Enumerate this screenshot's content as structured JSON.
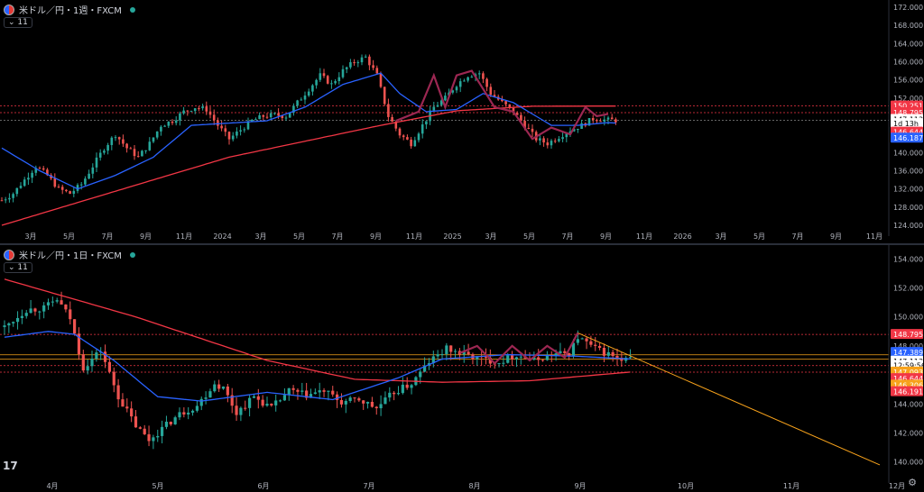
{
  "top": {
    "legend_title": "米ドル／円・1週・FXCM",
    "indicator_badge": "⌄ 11",
    "y_ticks": [
      "172.000",
      "168.000",
      "164.000",
      "160.000",
      "156.000",
      "152.000",
      "148.000",
      "144.000",
      "140.000",
      "136.000",
      "132.000",
      "128.000",
      "124.000"
    ],
    "x_ticks": [
      "3月",
      "5月",
      "7月",
      "9月",
      "11月",
      "2024",
      "3月",
      "5月",
      "7月",
      "9月",
      "11月",
      "2025",
      "3月",
      "5月",
      "7月",
      "9月",
      "11月",
      "2026",
      "3月",
      "5月",
      "7月",
      "9月",
      "11月"
    ],
    "price_labels": [
      {
        "text": "150.251",
        "color": "#f23645",
        "value": 150.251
      },
      {
        "text": "148.795",
        "color": "#f23645",
        "value": 148.795
      },
      {
        "text": "147.113",
        "color": "#ffffff",
        "value": 147.3
      },
      {
        "text": "1d 13h",
        "color": "#ffffff",
        "value": 146.4
      },
      {
        "text": "146.644",
        "color": "#f23645",
        "value": 144.5
      },
      {
        "text": "146.187",
        "color": "#2962ff",
        "value": 143.2
      }
    ]
  },
  "bottom": {
    "legend_title": "米ドル／円・1日・FXCM",
    "indicator_badge": "⌄ 11",
    "y_ticks": [
      "154.000",
      "152.000",
      "150.000",
      "148.000",
      "146.000",
      "144.000",
      "142.000",
      "140.000"
    ],
    "x_ticks": [
      "4月",
      "5月",
      "6月",
      "7月",
      "8月",
      "9月",
      "10月",
      "11月",
      "12月"
    ],
    "price_labels": [
      {
        "text": "148.795",
        "color": "#f23645",
        "value": 148.795
      },
      {
        "text": "147.389",
        "color": "#2962ff",
        "value": 147.55
      },
      {
        "text": "147.113",
        "color": "#ffffff",
        "value": 146.95
      },
      {
        "text": "12:59:56",
        "color": "#ffffff",
        "value": 146.65
      },
      {
        "text": "147.093",
        "color": "#f7a21b",
        "value": 146.2
      },
      {
        "text": "146.644",
        "color": "#f23645",
        "value": 145.75
      },
      {
        "text": "146.306",
        "color": "#f7a21b",
        "value": 145.3
      },
      {
        "text": "146.191",
        "color": "#f23645",
        "value": 144.85
      }
    ]
  },
  "tv_logo": "17",
  "gear_icon": "settings-icon",
  "colors": {
    "up": "#26a69a",
    "down": "#ef5350",
    "ma_fast": "#2962ff",
    "ma_slow": "#f23645",
    "trend": "#f7a21b",
    "bg": "#000000",
    "grid_text": "#b2b5be"
  },
  "chart_data": [
    {
      "type": "candlestick",
      "title": "米ドル／円・1週・FXCM",
      "ylim": [
        124,
        172
      ],
      "x_range": [
        "2023-01",
        "2026-12"
      ],
      "x_tick_labels": [
        "3月",
        "5月",
        "7月",
        "9月",
        "11月",
        "2024",
        "3月",
        "5月",
        "7月",
        "9月",
        "11月",
        "2025",
        "3月",
        "5月",
        "7月",
        "9月",
        "11月",
        "2026",
        "3月",
        "5月",
        "7月",
        "9月",
        "11月"
      ],
      "close_path": [
        [
          0,
          129.5
        ],
        [
          3,
          131
        ],
        [
          6,
          134
        ],
        [
          9,
          137
        ],
        [
          12,
          135
        ],
        [
          15,
          132
        ],
        [
          18,
          131
        ],
        [
          21,
          133
        ],
        [
          24,
          137
        ],
        [
          27,
          141
        ],
        [
          30,
          144
        ],
        [
          33,
          141
        ],
        [
          36,
          139
        ],
        [
          39,
          142
        ],
        [
          42,
          146
        ],
        [
          45,
          147
        ],
        [
          48,
          149
        ],
        [
          51,
          150
        ],
        [
          54,
          149.5
        ],
        [
          57,
          146
        ],
        [
          60,
          143
        ],
        [
          63,
          145
        ],
        [
          66,
          147
        ],
        [
          69,
          148
        ],
        [
          72,
          148.3
        ],
        [
          75,
          148
        ],
        [
          78,
          151
        ],
        [
          81,
          154
        ],
        [
          84,
          157
        ],
        [
          87,
          155
        ],
        [
          90,
          158
        ],
        [
          93,
          160
        ],
        [
          96,
          161
        ],
        [
          99,
          157
        ],
        [
          102,
          148
        ],
        [
          105,
          144
        ],
        [
          108,
          142
        ],
        [
          111,
          146
        ],
        [
          114,
          150
        ],
        [
          117,
          152
        ],
        [
          120,
          155
        ],
        [
          123,
          157
        ],
        [
          126,
          157.5
        ],
        [
          129,
          153
        ],
        [
          132,
          151
        ],
        [
          135,
          149
        ],
        [
          138,
          146
        ],
        [
          141,
          143
        ],
        [
          144,
          142
        ],
        [
          147,
          143.5
        ],
        [
          150,
          145
        ],
        [
          153,
          146
        ],
        [
          156,
          147.5
        ],
        [
          159,
          147.2
        ],
        [
          162,
          147.1
        ]
      ],
      "ma_fast_path": [
        [
          0,
          141
        ],
        [
          10,
          136
        ],
        [
          20,
          132
        ],
        [
          30,
          135
        ],
        [
          40,
          139
        ],
        [
          50,
          146
        ],
        [
          60,
          146.5
        ],
        [
          70,
          147
        ],
        [
          80,
          150
        ],
        [
          90,
          155
        ],
        [
          100,
          157.5
        ],
        [
          105,
          153
        ],
        [
          112,
          149
        ],
        [
          120,
          149.5
        ],
        [
          127,
          153
        ],
        [
          135,
          151
        ],
        [
          145,
          146
        ],
        [
          152,
          146
        ],
        [
          160,
          146.6
        ],
        [
          162,
          146.5
        ]
      ],
      "ma_slow_path": [
        [
          0,
          124
        ],
        [
          20,
          129
        ],
        [
          40,
          134
        ],
        [
          60,
          139
        ],
        [
          80,
          142.5
        ],
        [
          100,
          146
        ],
        [
          120,
          149.2
        ],
        [
          140,
          150.2
        ],
        [
          162,
          150.25
        ]
      ],
      "last_price": 147.113
    },
    {
      "type": "candlestick",
      "title": "米ドル／円・1日・FXCM",
      "ylim": [
        139.3,
        154.7
      ],
      "x_range": [
        "2025-03",
        "2025-12"
      ],
      "x_tick_labels": [
        "4月",
        "5月",
        "6月",
        "7月",
        "8月",
        "9月",
        "10月",
        "11月",
        "12月"
      ],
      "close_path": [
        [
          0,
          149.3
        ],
        [
          5,
          150.5
        ],
        [
          9,
          150.6
        ],
        [
          12,
          151.2
        ],
        [
          15,
          149.9
        ],
        [
          18,
          146.5
        ],
        [
          22,
          147.7
        ],
        [
          26,
          144.5
        ],
        [
          30,
          142.5
        ],
        [
          33,
          141.5
        ],
        [
          36,
          142.3
        ],
        [
          40,
          143.3
        ],
        [
          44,
          143.9
        ],
        [
          48,
          145.4
        ],
        [
          50,
          145.1
        ],
        [
          53,
          143.4
        ],
        [
          57,
          144.5
        ],
        [
          61,
          143.7
        ],
        [
          65,
          144.9
        ],
        [
          69,
          144.6
        ],
        [
          73,
          144.9
        ],
        [
          77,
          144.1
        ],
        [
          81,
          144.3
        ],
        [
          85,
          143.7
        ],
        [
          89,
          144.8
        ],
        [
          93,
          145.4
        ],
        [
          97,
          146.9
        ],
        [
          101,
          147.8
        ],
        [
          105,
          147.4
        ],
        [
          109,
          147.1
        ],
        [
          113,
          146.9
        ],
        [
          117,
          147.4
        ],
        [
          121,
          147.0
        ],
        [
          125,
          147.4
        ],
        [
          129,
          147.5
        ],
        [
          131,
          148.6
        ],
        [
          135,
          147.8
        ],
        [
          139,
          147.3
        ],
        [
          141,
          146.9
        ],
        [
          143,
          147.1
        ]
      ],
      "ma_fast_path": [
        [
          0,
          148.6
        ],
        [
          10,
          149
        ],
        [
          16,
          148.8
        ],
        [
          25,
          147
        ],
        [
          35,
          144.5
        ],
        [
          45,
          144.2
        ],
        [
          60,
          144.8
        ],
        [
          75,
          144.3
        ],
        [
          90,
          145.8
        ],
        [
          100,
          147.1
        ],
        [
          115,
          147.4
        ],
        [
          130,
          147.3
        ],
        [
          143,
          147.1
        ]
      ],
      "ma_slow_path": [
        [
          0,
          152.6
        ],
        [
          30,
          150
        ],
        [
          60,
          147
        ],
        [
          80,
          145.7
        ],
        [
          100,
          145.5
        ],
        [
          120,
          145.6
        ],
        [
          143,
          146.2
        ]
      ],
      "trendline": [
        [
          131,
          148.9
        ],
        [
          200,
          139.8
        ]
      ],
      "hline_values": [
        148.795,
        147.389,
        147.113,
        147.093,
        146.306
      ],
      "last_price": 147.113
    }
  ]
}
